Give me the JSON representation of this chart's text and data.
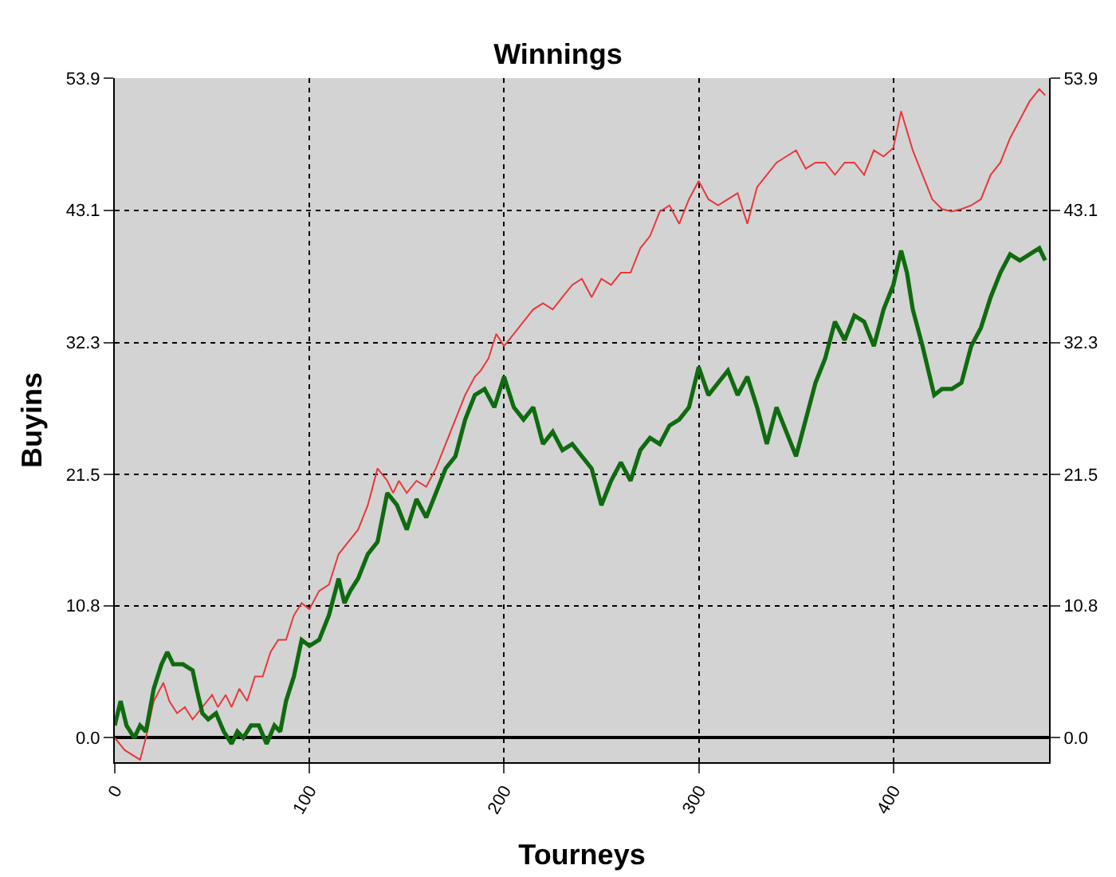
{
  "chart_data": {
    "type": "line",
    "title": "Winnings",
    "xlabel": "Tourneys",
    "ylabel": "Buyins",
    "xlim": [
      0,
      480
    ],
    "xticks": [
      0,
      100,
      200,
      300,
      400
    ],
    "ylim": [
      -2,
      53.9
    ],
    "yticks": [
      {
        "value": 0,
        "label": "0.0"
      },
      10.8,
      21.5,
      32.3,
      43.1,
      53.9
    ],
    "y2lim": [
      -2,
      53.9
    ],
    "y2ticks": [
      {
        "value": 0,
        "label": "0.0"
      },
      10.8,
      21.5,
      32.3,
      43.1,
      53.9
    ],
    "grid": true,
    "marker": "none",
    "line_style": "solid",
    "series": [
      {
        "color": "#e8383b",
        "x": [
          0,
          5,
          10,
          13,
          16,
          20,
          25,
          28,
          32,
          36,
          40,
          45,
          50,
          53,
          57,
          60,
          64,
          68,
          72,
          76,
          80,
          84,
          88,
          92,
          96,
          100,
          105,
          110,
          115,
          120,
          125,
          130,
          135,
          140,
          143,
          146,
          150,
          155,
          160,
          165,
          170,
          175,
          180,
          185,
          188,
          192,
          196,
          200,
          205,
          210,
          215,
          220,
          225,
          230,
          235,
          240,
          245,
          250,
          255,
          260,
          265,
          270,
          275,
          280,
          285,
          290,
          295,
          300,
          305,
          310,
          315,
          320,
          325,
          330,
          335,
          340,
          345,
          350,
          355,
          360,
          365,
          370,
          375,
          380,
          385,
          390,
          395,
          400,
          404,
          410,
          415,
          420,
          425,
          430,
          435,
          440,
          445,
          450,
          455,
          460,
          465,
          470,
          475,
          478
        ],
        "values": [
          0,
          -1,
          -1.5,
          -1.8,
          0,
          3,
          4.5,
          3,
          2,
          2.5,
          1.5,
          2.5,
          3.5,
          2.5,
          3.5,
          2.5,
          4,
          3,
          5,
          5,
          7,
          8,
          8,
          10,
          11,
          10.5,
          12,
          12.5,
          15,
          16,
          17,
          19,
          22,
          21,
          20,
          21,
          20,
          21,
          20.5,
          22,
          24,
          26,
          28,
          29.5,
          30,
          31,
          33,
          32,
          33,
          34,
          35,
          35.5,
          35,
          36,
          37,
          37.5,
          36,
          37.5,
          37,
          38,
          38,
          40,
          41,
          43,
          43.5,
          42,
          44,
          45.5,
          44,
          43.5,
          44,
          44.5,
          42,
          45,
          46,
          47,
          47.5,
          48,
          46.5,
          47,
          47,
          46,
          47,
          47,
          46,
          48,
          47.5,
          48.2,
          51.2,
          48,
          46,
          44,
          43.2,
          43,
          43.2,
          43.5,
          44,
          46,
          47,
          49,
          50.5,
          52,
          53,
          52.5
        ]
      },
      {
        "color": "#0f6b0f",
        "x": [
          0,
          3,
          6,
          10,
          13,
          16,
          20,
          24,
          27,
          30,
          35,
          40,
          42,
          45,
          48,
          52,
          56,
          60,
          63,
          66,
          70,
          74,
          78,
          82,
          85,
          88,
          92,
          96,
          100,
          105,
          110,
          115,
          118,
          121,
          125,
          130,
          135,
          140,
          145,
          150,
          155,
          160,
          165,
          170,
          175,
          180,
          185,
          190,
          195,
          200,
          205,
          210,
          215,
          220,
          225,
          230,
          235,
          240,
          245,
          250,
          255,
          260,
          265,
          270,
          275,
          280,
          285,
          290,
          295,
          300,
          305,
          310,
          315,
          320,
          325,
          330,
          335,
          340,
          345,
          350,
          355,
          360,
          365,
          370,
          375,
          380,
          385,
          390,
          395,
          400,
          404,
          407,
          410,
          415,
          421,
          425,
          430,
          435,
          440,
          445,
          450,
          455,
          460,
          465,
          470,
          475,
          478
        ],
        "values": [
          1,
          3,
          1,
          0,
          1,
          0.5,
          4,
          6,
          7,
          6,
          6,
          5.5,
          4,
          2,
          1.5,
          2,
          0.5,
          -0.5,
          0.5,
          0,
          1,
          1,
          -0.5,
          1,
          0.5,
          3,
          5,
          8,
          7.5,
          8,
          10,
          13,
          11,
          12,
          13,
          15,
          16,
          20,
          19,
          17,
          19.5,
          18,
          20,
          22,
          23,
          26,
          28,
          28.5,
          27,
          29.5,
          27,
          26,
          27,
          24,
          25,
          23.5,
          24,
          23,
          22,
          19,
          21,
          22.5,
          21,
          23.5,
          24.5,
          24,
          25.5,
          26,
          27,
          30.3,
          28,
          29,
          30,
          28,
          29.5,
          27,
          24,
          27,
          25,
          23,
          26,
          29,
          31,
          34,
          32.5,
          34.5,
          34,
          32,
          35,
          37,
          39.8,
          38,
          35,
          32,
          28,
          28.5,
          28.5,
          29,
          32,
          33.5,
          36,
          38,
          39.5,
          39,
          39.5,
          40,
          39
        ]
      }
    ]
  }
}
